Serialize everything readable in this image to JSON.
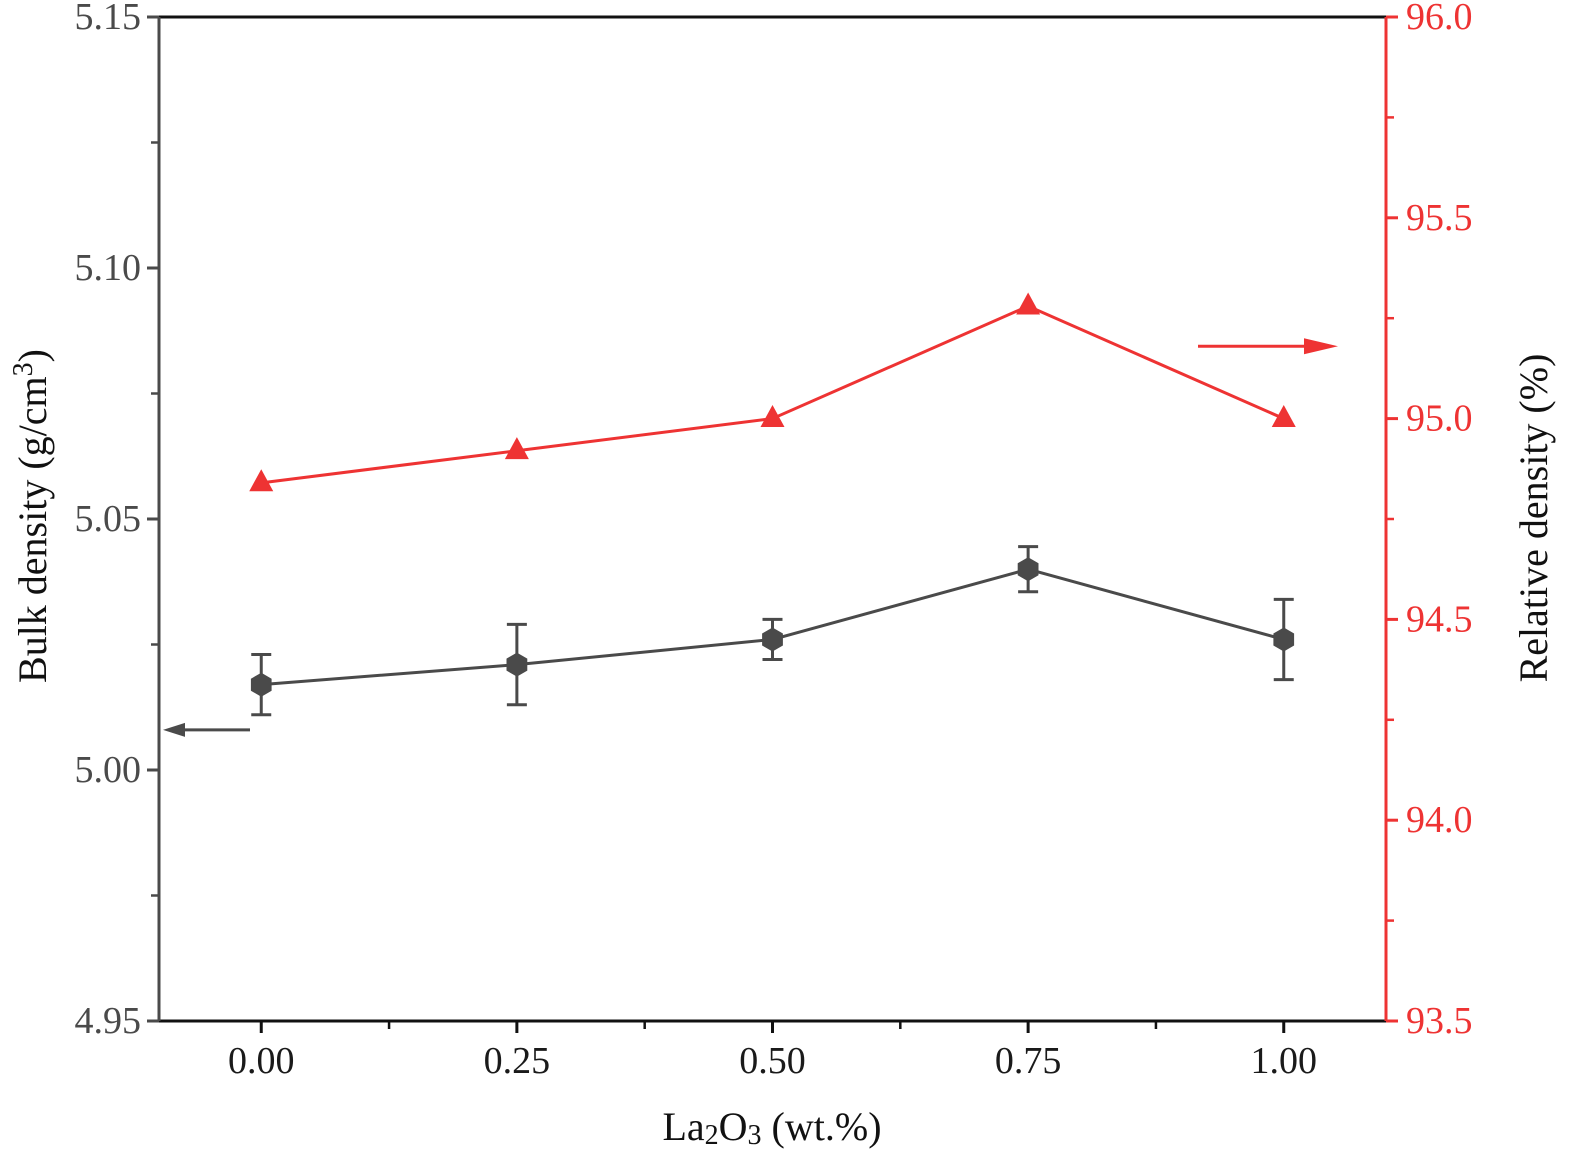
{
  "chart_data": {
    "type": "line",
    "x": [
      0.0,
      0.25,
      0.5,
      0.75,
      1.0
    ],
    "x_tick_labels": [
      "0.00",
      "0.25",
      "0.50",
      "0.75",
      "1.00"
    ],
    "xlim": [
      -0.1,
      1.1
    ],
    "xlabel": {
      "main": "La",
      "sub1": "2",
      "mid": "O",
      "sub2": "3",
      "tail": " (wt.%)"
    },
    "left_axis": {
      "label": {
        "main": "Bulk density (g/cm",
        "sup": "3",
        "tail": ")"
      },
      "ylim": [
        4.95,
        5.15
      ],
      "tick_labels": [
        "4.95",
        "5.00",
        "5.05",
        "5.10",
        "5.15"
      ],
      "color": "#4a4a4a"
    },
    "right_axis": {
      "label": "Relative density (%)",
      "ylim": [
        93.5,
        96.0
      ],
      "tick_labels": [
        "93.5",
        "94.0",
        "94.5",
        "95.0",
        "95.5",
        "96.0"
      ],
      "color": "#ee3333"
    },
    "series": [
      {
        "axis": "left",
        "marker": "hexagon",
        "color": "#4a4a4a",
        "values": [
          5.017,
          5.021,
          5.026,
          5.04,
          5.026
        ],
        "error": [
          0.006,
          0.008,
          0.004,
          0.0045,
          0.008
        ]
      },
      {
        "axis": "right",
        "marker": "triangle",
        "color": "#ee3333",
        "values": [
          94.84,
          94.92,
          95.0,
          95.28,
          95.0
        ]
      }
    ],
    "indicator_arrows": [
      {
        "points_to": "left",
        "series": 0
      },
      {
        "points_to": "right",
        "series": 1
      }
    ],
    "grid": false
  }
}
